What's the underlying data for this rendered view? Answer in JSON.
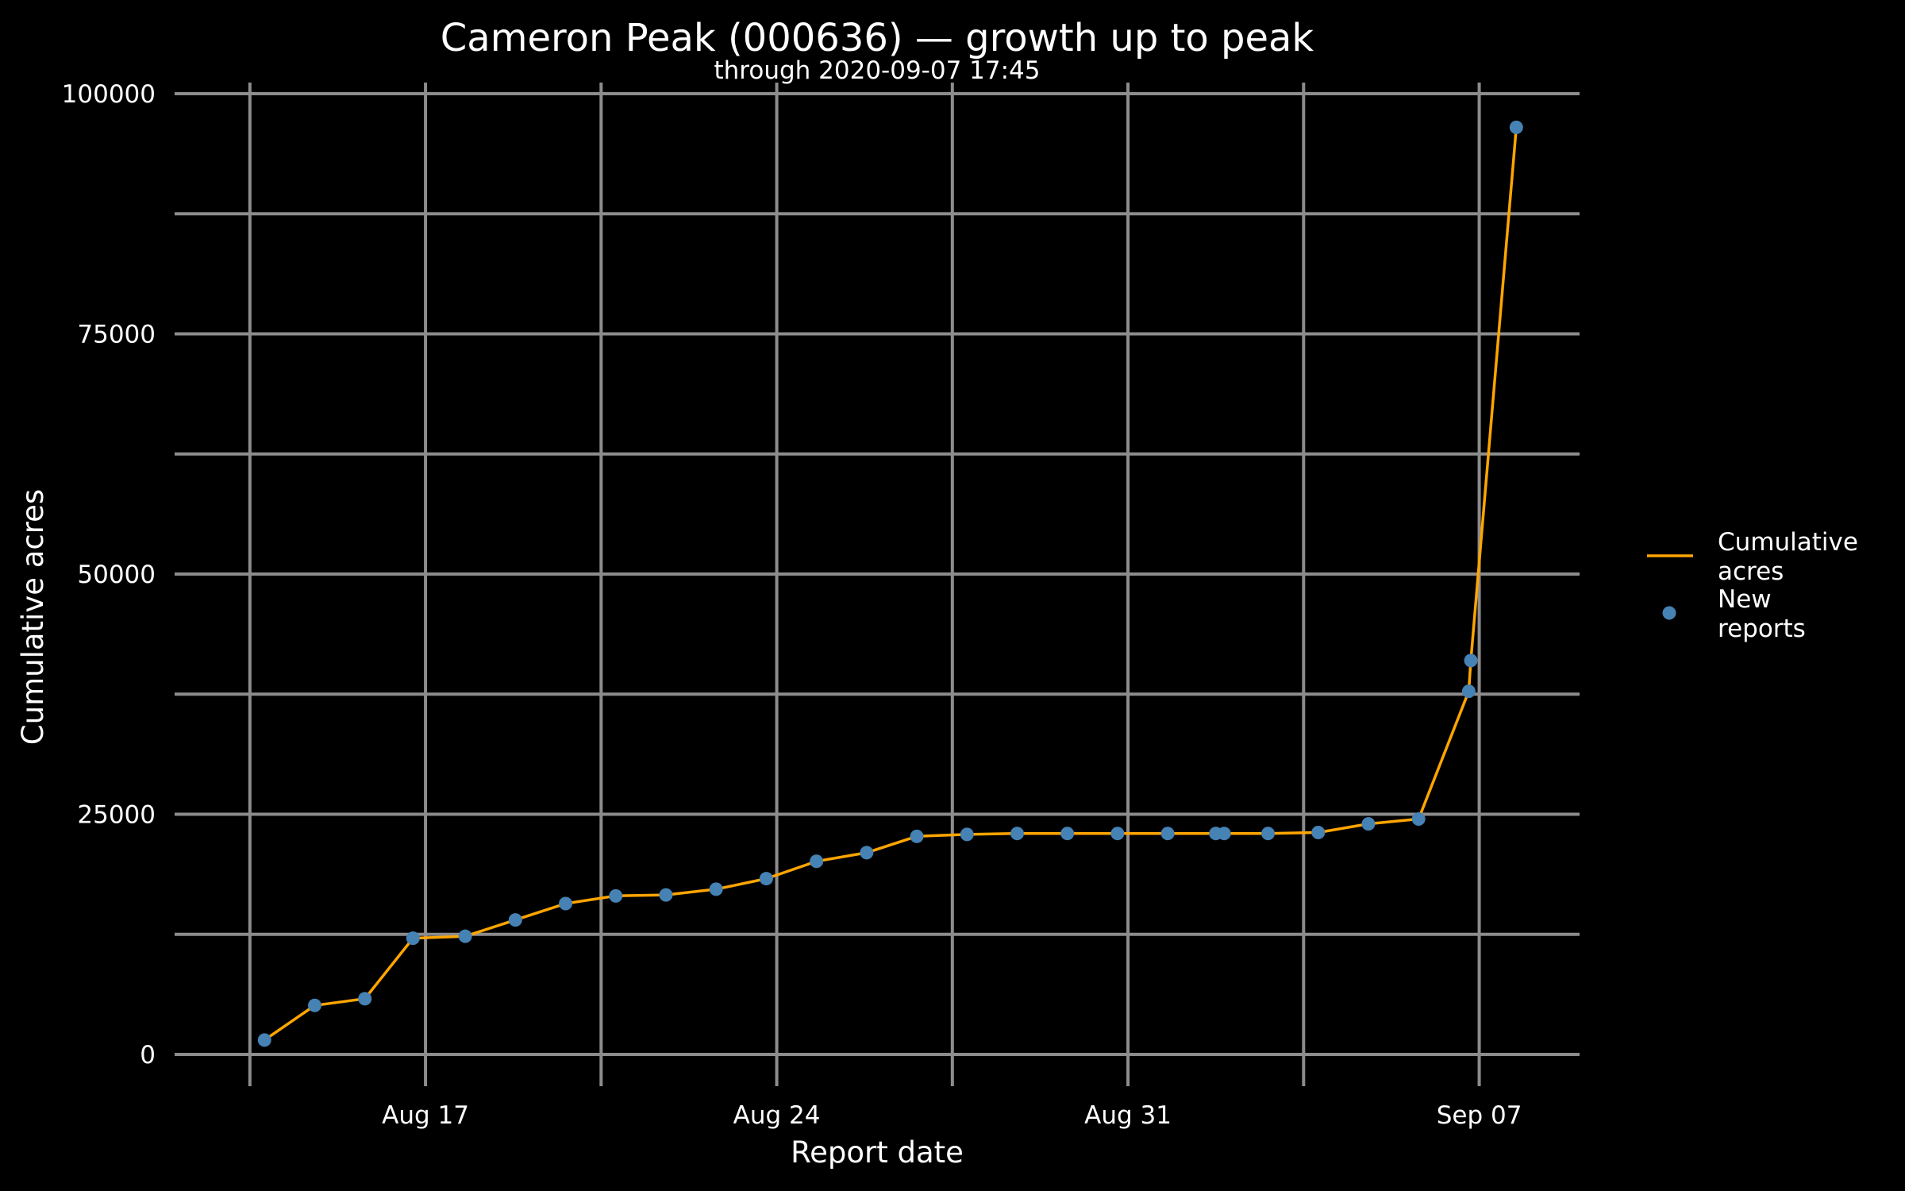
{
  "colors": {
    "background": "#000000",
    "grid": "#8c8c8c",
    "line": "#FFA500",
    "points": "#4682B4",
    "text": "#FFFFFF"
  },
  "chart_data": {
    "type": "line",
    "title": "Cameron Peak (000636) — growth up to peak",
    "subtitle": "through 2020-09-07 17:45",
    "xlabel": "Report date",
    "ylabel": "Cumulative acres",
    "xlim": [
      "2020-08-12",
      "2020-09-09"
    ],
    "ylim": [
      0,
      100000
    ],
    "grid": true,
    "legend_position": "right",
    "x_ticks": [
      {
        "value": "2020-08-17",
        "label": "Aug 17"
      },
      {
        "value": "2020-08-24",
        "label": "Aug 24"
      },
      {
        "value": "2020-08-31",
        "label": "Aug 31"
      },
      {
        "value": "2020-09-07",
        "label": "Sep 07"
      }
    ],
    "y_ticks": [
      {
        "value": 0,
        "label": "0"
      },
      {
        "value": 25000,
        "label": "25000"
      },
      {
        "value": 50000,
        "label": "50000"
      },
      {
        "value": 75000,
        "label": "75000"
      },
      {
        "value": 100000,
        "label": "100000"
      }
    ],
    "legend": [
      {
        "kind": "line",
        "label_lines": [
          "Cumulative",
          "acres"
        ]
      },
      {
        "kind": "point",
        "label_lines": [
          "New",
          "reports"
        ]
      }
    ],
    "series": [
      {
        "name": "Cumulative acres",
        "points": [
          {
            "x": "2020-08-13 19:00",
            "y": 1500
          },
          {
            "x": "2020-08-14 19:00",
            "y": 5100
          },
          {
            "x": "2020-08-15 19:00",
            "y": 5800
          },
          {
            "x": "2020-08-16 18:00",
            "y": 12100
          },
          {
            "x": "2020-08-17 19:00",
            "y": 12300
          },
          {
            "x": "2020-08-18 19:00",
            "y": 14000
          },
          {
            "x": "2020-08-19 19:00",
            "y": 15700
          },
          {
            "x": "2020-08-20 19:00",
            "y": 16500
          },
          {
            "x": "2020-08-21 19:00",
            "y": 16600
          },
          {
            "x": "2020-08-22 19:00",
            "y": 17200
          },
          {
            "x": "2020-08-23 19:00",
            "y": 18300
          },
          {
            "x": "2020-08-24 19:00",
            "y": 20100
          },
          {
            "x": "2020-08-25 19:00",
            "y": 21000
          },
          {
            "x": "2020-08-26 19:00",
            "y": 22700
          },
          {
            "x": "2020-08-27 19:00",
            "y": 22900
          },
          {
            "x": "2020-08-28 19:00",
            "y": 23000
          },
          {
            "x": "2020-08-29 19:00",
            "y": 23000
          },
          {
            "x": "2020-08-30 19:00",
            "y": 23000
          },
          {
            "x": "2020-08-31 19:00",
            "y": 23000
          },
          {
            "x": "2020-09-01 18:00",
            "y": 23000
          },
          {
            "x": "2020-09-01 22:00",
            "y": 23000
          },
          {
            "x": "2020-09-02 19:00",
            "y": 23000
          },
          {
            "x": "2020-09-03 19:00",
            "y": 23100
          },
          {
            "x": "2020-09-04 19:00",
            "y": 24000
          },
          {
            "x": "2020-09-05 19:00",
            "y": 24500
          },
          {
            "x": "2020-09-06 19:00",
            "y": 37800
          },
          {
            "x": "2020-09-06 20:00",
            "y": 41000
          },
          {
            "x": "2020-09-07 17:45",
            "y": 96500
          }
        ]
      }
    ]
  }
}
